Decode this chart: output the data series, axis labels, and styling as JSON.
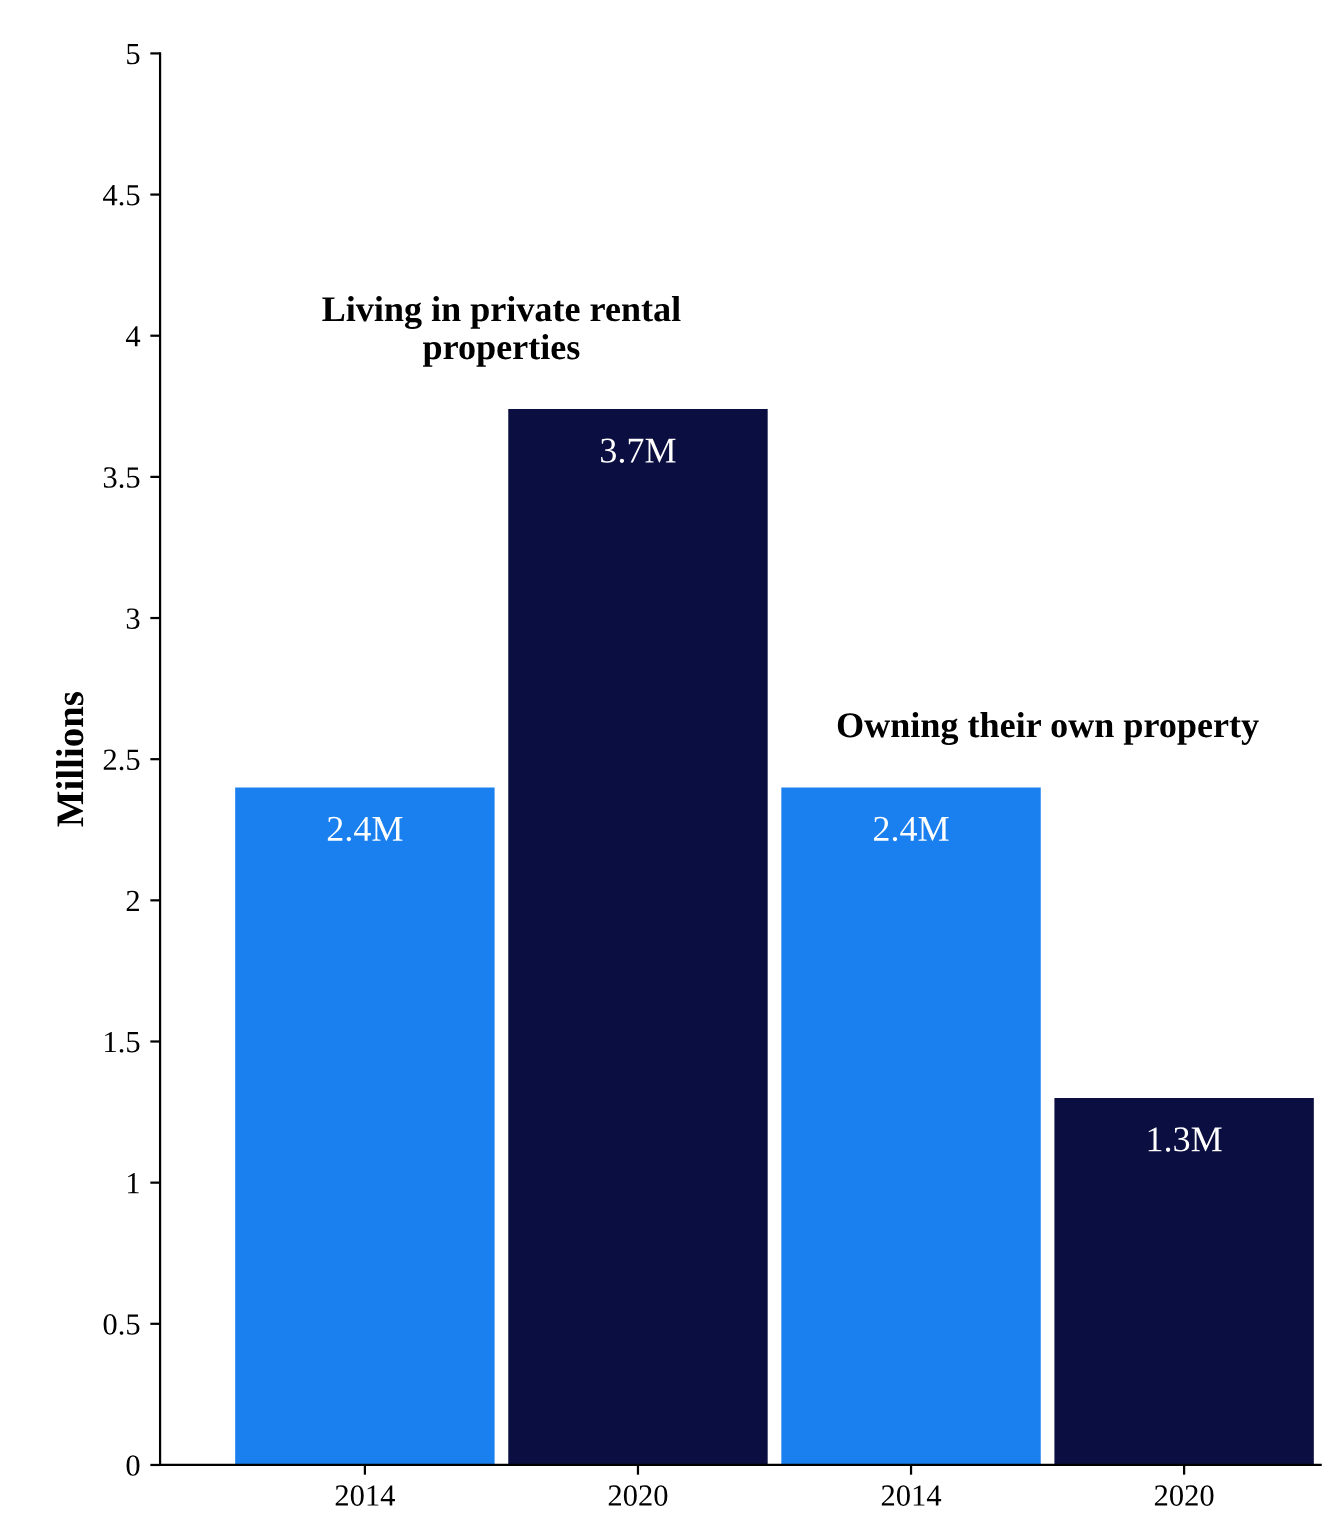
{
  "chart_data": {
    "type": "bar",
    "ylabel": "Millions",
    "categories": [
      "2014",
      "2020",
      "2014",
      "2020"
    ],
    "values": [
      2.4,
      3.74,
      2.4,
      1.3
    ],
    "colors": [
      "#1a80f0",
      "#0b0e40",
      "#1a80f0",
      "#0b0e40"
    ],
    "value_labels": [
      "2.4M",
      "3.7M",
      "2.4M",
      "1.3M"
    ],
    "annotations": [
      "Living in private rental\nproperties",
      "Owning their own property"
    ],
    "ylim": [
      0,
      5
    ],
    "yticks": [
      0,
      0.5,
      1,
      1.5,
      2,
      2.5,
      3,
      3.5,
      4,
      4.5,
      5
    ],
    "grid": false,
    "legend": false
  }
}
